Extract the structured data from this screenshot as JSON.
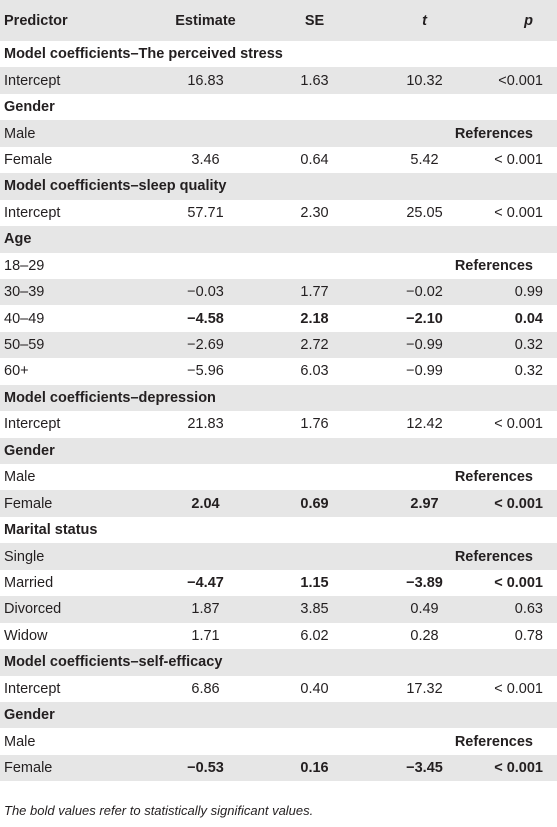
{
  "table": {
    "headers": {
      "predictor": "Predictor",
      "estimate": "Estimate",
      "se": "SE",
      "t": "t",
      "p": "p"
    },
    "rows": [
      {
        "type": "section",
        "label": "Model coefficients–The perceived stress"
      },
      {
        "type": "data",
        "predictor": "Intercept",
        "estimate": "16.83",
        "se": "1.63",
        "t": "10.32",
        "p": "<0.001",
        "bold": false
      },
      {
        "type": "section",
        "label": "Gender"
      },
      {
        "type": "reference",
        "predictor": "Male",
        "reference": "References"
      },
      {
        "type": "data",
        "predictor": "Female",
        "estimate": "3.46",
        "se": "0.64",
        "t": "5.42",
        "p": "< 0.001",
        "bold": false
      },
      {
        "type": "section",
        "label": "Model coefficients–sleep quality"
      },
      {
        "type": "data",
        "predictor": "Intercept",
        "estimate": "57.71",
        "se": "2.30",
        "t": "25.05",
        "p": "< 0.001",
        "bold": false
      },
      {
        "type": "section",
        "label": "Age"
      },
      {
        "type": "reference",
        "predictor": "18–29",
        "reference": "References"
      },
      {
        "type": "data",
        "predictor": "30–39",
        "estimate": "−0.03",
        "se": "1.77",
        "t": "−0.02",
        "p": "0.99",
        "bold": false
      },
      {
        "type": "data",
        "predictor": "40–49",
        "estimate": "−4.58",
        "se": "2.18",
        "t": "−2.10",
        "p": "0.04",
        "bold": true
      },
      {
        "type": "data",
        "predictor": "50–59",
        "estimate": "−2.69",
        "se": "2.72",
        "t": "−0.99",
        "p": "0.32",
        "bold": false
      },
      {
        "type": "data",
        "predictor": "60+",
        "estimate": "−5.96",
        "se": "6.03",
        "t": "−0.99",
        "p": "0.32",
        "bold": false
      },
      {
        "type": "section",
        "label": "Model coefficients–depression"
      },
      {
        "type": "data",
        "predictor": "Intercept",
        "estimate": "21.83",
        "se": "1.76",
        "t": "12.42",
        "p": "< 0.001",
        "bold": false
      },
      {
        "type": "section",
        "label": "Gender"
      },
      {
        "type": "reference",
        "predictor": "Male",
        "reference": "References"
      },
      {
        "type": "data",
        "predictor": "Female",
        "estimate": "2.04",
        "se": "0.69",
        "t": "2.97",
        "p": "< 0.001",
        "bold": true
      },
      {
        "type": "section",
        "label": "Marital status"
      },
      {
        "type": "reference",
        "predictor": "Single",
        "reference": "References"
      },
      {
        "type": "data",
        "predictor": "Married",
        "estimate": "−4.47",
        "se": "1.15",
        "t": "−3.89",
        "p": "< 0.001",
        "bold": true
      },
      {
        "type": "data",
        "predictor": "Divorced",
        "estimate": "1.87",
        "se": "3.85",
        "t": "0.49",
        "p": "0.63",
        "bold": false
      },
      {
        "type": "data",
        "predictor": "Widow",
        "estimate": "1.71",
        "se": "6.02",
        "t": "0.28",
        "p": "0.78",
        "bold": false
      },
      {
        "type": "section",
        "label": "Model coefficients–self-efficacy"
      },
      {
        "type": "data",
        "predictor": "Intercept",
        "estimate": "6.86",
        "se": "0.40",
        "t": "17.32",
        "p": "< 0.001",
        "bold": false
      },
      {
        "type": "section",
        "label": "Gender"
      },
      {
        "type": "reference",
        "predictor": "Male",
        "reference": "References"
      },
      {
        "type": "data",
        "predictor": "Female",
        "estimate": "−0.53",
        "se": "0.16",
        "t": "−3.45",
        "p": "< 0.001",
        "bold": true
      }
    ]
  },
  "footnote": "The bold values refer to statistically significant values.",
  "colors": {
    "stripe": "#e6e6e6",
    "text": "#231f20",
    "background": "#ffffff"
  }
}
